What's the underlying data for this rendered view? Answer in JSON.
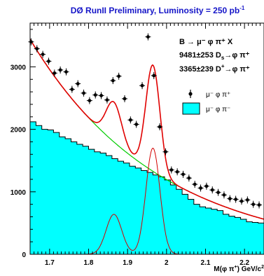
{
  "chart_data": {
    "type": "histogram+fit",
    "title": "DØ RunII Preliminary, Luminosity = 250 pb",
    "title_sup": "-1",
    "xlabel": "M(φ π",
    "xlabel_sup": "+",
    "xlabel_unit": ") GeV/c",
    "xlabel_unit_sup": "2",
    "ylabel": "",
    "xlim": [
      1.65,
      2.25
    ],
    "ylim": [
      0,
      3700
    ],
    "x_ticks": [
      1.7,
      1.8,
      1.9,
      2.0,
      2.1,
      2.2
    ],
    "x_tick_labels": [
      "1.7",
      "1.8",
      "1.9",
      "2",
      "2.1",
      "2.2"
    ],
    "y_ticks": [
      0,
      1000,
      2000,
      3000
    ],
    "y_tick_labels": [
      "0",
      "1000",
      "2000",
      "3000"
    ],
    "annotations": {
      "process": "B → μ⁻ φ π⁺ X",
      "ds_yield": "9481±253  D",
      "ds_sub": "s",
      "ds_tail": "→φ π⁺",
      "dplus_yield": "3365±239  D",
      "dplus_sup": "+",
      "dplus_tail": "→φ π⁺"
    },
    "legend": [
      {
        "label": "μ⁻ φ π⁺",
        "style": "points"
      },
      {
        "label": "μ⁻ φ π⁻",
        "style": "filled",
        "color": "#00ffff"
      }
    ],
    "colors": {
      "fit_total": "#e00000",
      "background_fit": "#00cc00",
      "signal": "#d40000",
      "wrong_sign_fill": "#00ffff"
    },
    "data_points": {
      "x": [
        1.6525,
        1.6675,
        1.6825,
        1.6975,
        1.7125,
        1.7275,
        1.7425,
        1.7575,
        1.7725,
        1.7875,
        1.8025,
        1.8175,
        1.8325,
        1.8475,
        1.8625,
        1.8775,
        1.8925,
        1.9075,
        1.9225,
        1.9375,
        1.9525,
        1.9675,
        1.9825,
        1.9975,
        2.0125,
        2.0275,
        2.0425,
        2.0575,
        2.0725,
        2.0875,
        2.1025,
        2.1175,
        2.1325,
        2.1475,
        2.1625,
        2.1775,
        2.1925,
        2.2075,
        2.2225,
        2.2375
      ],
      "y": [
        3400,
        3290,
        3200,
        3090,
        2900,
        2950,
        2920,
        2640,
        2730,
        2580,
        2460,
        2550,
        2540,
        2470,
        2780,
        2850,
        2490,
        2150,
        2080,
        2700,
        3480,
        2860,
        2040,
        1640,
        1350,
        1320,
        1280,
        1220,
        1120,
        1060,
        1090,
        1030,
        990,
        950,
        890,
        880,
        850,
        870,
        800,
        790
      ]
    },
    "wrong_sign_histogram": {
      "bin_edges": [
        1.65,
        1.665,
        1.68,
        1.695,
        1.71,
        1.725,
        1.74,
        1.755,
        1.77,
        1.785,
        1.8,
        1.815,
        1.83,
        1.845,
        1.86,
        1.875,
        1.89,
        1.905,
        1.92,
        1.935,
        1.95,
        1.965,
        1.98,
        1.995,
        2.01,
        2.025,
        2.04,
        2.055,
        2.07,
        2.085,
        2.1,
        2.115,
        2.13,
        2.145,
        2.16,
        2.175,
        2.19,
        2.205,
        2.22,
        2.235,
        2.25
      ],
      "values": [
        2120,
        2060,
        2000,
        1990,
        1950,
        1880,
        1850,
        1800,
        1760,
        1730,
        1680,
        1640,
        1620,
        1580,
        1530,
        1490,
        1460,
        1410,
        1380,
        1340,
        1310,
        1270,
        1240,
        1190,
        1110,
        1040,
        960,
        880,
        800,
        760,
        740,
        720,
        700,
        640,
        610,
        590,
        560,
        520,
        510,
        500
      ]
    },
    "background_fit": {
      "x0": 1.65,
      "x1": 2.25,
      "a": 3440,
      "b": 3.02
    },
    "signal_peaks": [
      {
        "name": "D⁺",
        "mean": 1.865,
        "sigma": 0.02,
        "amplitude": 640
      },
      {
        "name": "D_s",
        "mean": 1.965,
        "sigma": 0.018,
        "amplitude": 1700
      }
    ]
  }
}
